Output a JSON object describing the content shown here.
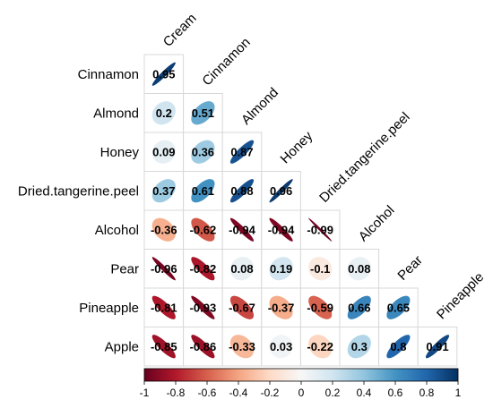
{
  "chart_data": {
    "type": "heatmap",
    "style": "correlation-ellipse-lower-triangle",
    "variables": [
      "Cream",
      "Cinnamon",
      "Almond",
      "Honey",
      "Dried.tangerine.peel",
      "Alcohol",
      "Pear",
      "Pineapple",
      "Apple"
    ],
    "row_labels": [
      "Cinnamon",
      "Almond",
      "Honey",
      "Dried.tangerine.peel",
      "Alcohol",
      "Pear",
      "Pineapple",
      "Apple"
    ],
    "col_labels": [
      "Cream",
      "Cinnamon",
      "Almond",
      "Honey",
      "Dried.tangerine.peel",
      "Alcohol",
      "Pear",
      "Pineapple"
    ],
    "matrix": [
      [
        0.95
      ],
      [
        0.2,
        0.51
      ],
      [
        0.09,
        0.36,
        0.87
      ],
      [
        0.37,
        0.61,
        0.88,
        0.96
      ],
      [
        -0.36,
        -0.62,
        -0.94,
        -0.94,
        -0.99
      ],
      [
        -0.96,
        -0.82,
        0.08,
        0.19,
        -0.1,
        0.08
      ],
      [
        -0.81,
        -0.93,
        -0.67,
        -0.37,
        -0.59,
        0.66,
        0.65
      ],
      [
        -0.85,
        -0.86,
        -0.33,
        0.03,
        -0.22,
        0.3,
        0.8,
        0.91
      ]
    ],
    "value_labels": [
      [
        "0.95"
      ],
      [
        "0.2",
        "0.51"
      ],
      [
        "0.09",
        "0.36",
        "0.87"
      ],
      [
        "0.37",
        "0.61",
        "0.88",
        "0.96"
      ],
      [
        "-0.36",
        "-0.62",
        "-0.94",
        "-0.94",
        "-0.99"
      ],
      [
        "-0.96",
        "-0.82",
        "0.08",
        "0.19",
        "-0.1",
        "0.08"
      ],
      [
        "-0.81",
        "-0.93",
        "-0.67",
        "-0.37",
        "-0.59",
        "0.66",
        "0.65"
      ],
      [
        "-0.85",
        "-0.86",
        "-0.33",
        "0.03",
        "-0.22",
        "0.3",
        "0.8",
        "0.91"
      ]
    ],
    "colorbar": {
      "range": [
        -1,
        1
      ],
      "ticks": [
        "-1",
        "-0.8",
        "-0.6",
        "-0.4",
        "-0.2",
        "0",
        "0.2",
        "0.4",
        "0.6",
        "0.8",
        "1"
      ],
      "placement": "bottom"
    },
    "palette": [
      "#67001f",
      "#b2182b",
      "#d6604d",
      "#f4a582",
      "#fddbc7",
      "#f7f7f7",
      "#d1e5f0",
      "#92c5de",
      "#4393c3",
      "#2166ac",
      "#053061"
    ]
  }
}
